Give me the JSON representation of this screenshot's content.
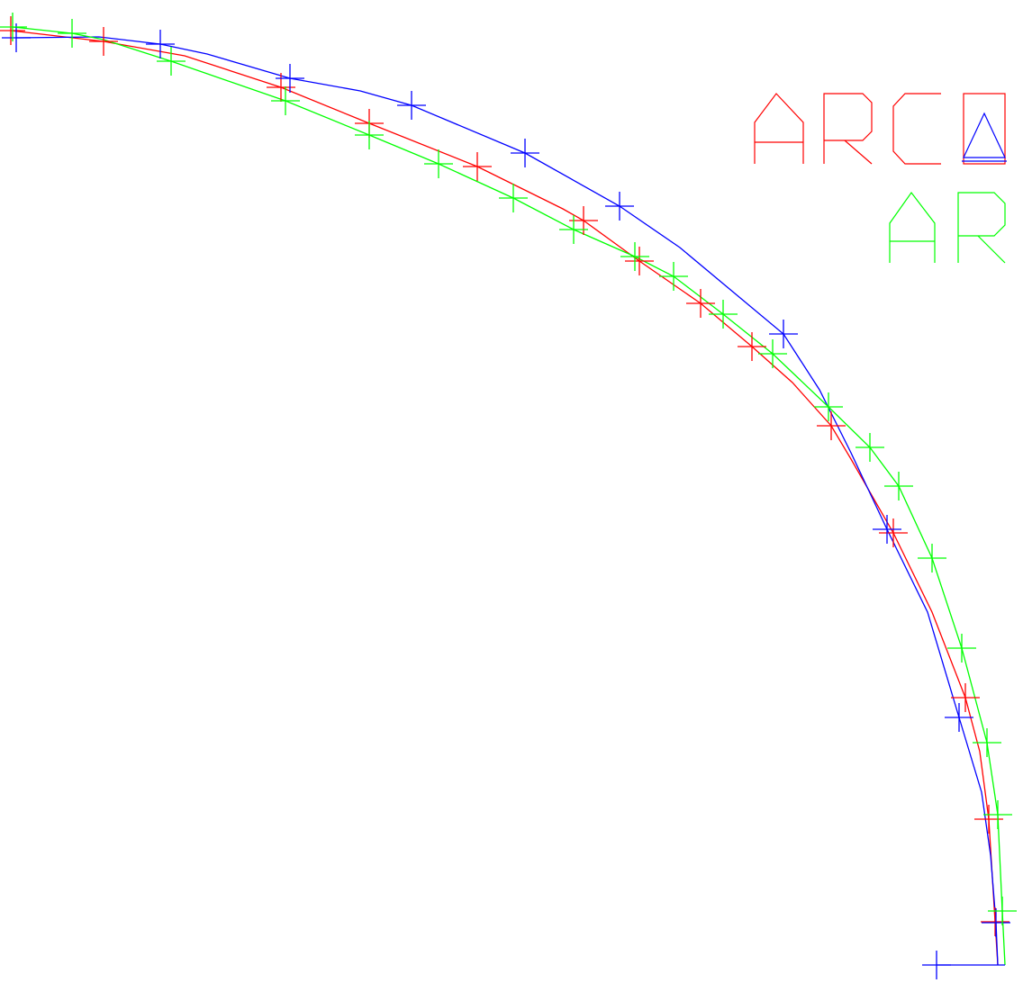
{
  "chart_data": {
    "type": "line",
    "title": "",
    "xlabel": "",
    "ylabel": "",
    "grid": false,
    "axes_visible": false,
    "labels": [
      {
        "text": "ARC",
        "color": "#ff0000"
      },
      {
        "text": "A",
        "color": "#0000ff",
        "boxed": true
      },
      {
        "text": "AR",
        "color": "#00ff00"
      }
    ],
    "series": [
      {
        "key": "red",
        "color": "#ff0000",
        "points": [
          [
            12,
            34
          ],
          [
            115,
            46
          ],
          [
            205,
            62
          ],
          [
            312,
            97
          ],
          [
            410,
            137
          ],
          [
            530,
            185
          ],
          [
            625,
            232
          ],
          [
            648,
            245
          ],
          [
            710,
            290
          ],
          [
            778,
            337
          ],
          [
            835,
            385
          ],
          [
            880,
            425
          ],
          [
            923,
            473
          ],
          [
            945,
            510
          ],
          [
            992,
            592
          ],
          [
            1035,
            680
          ],
          [
            1072,
            775
          ],
          [
            1088,
            835
          ],
          [
            1098,
            910
          ],
          [
            1105,
            1024
          ],
          [
            1108,
            1072
          ]
        ],
        "markers": [
          [
            12,
            34
          ],
          [
            115,
            46
          ],
          [
            312,
            97
          ],
          [
            410,
            137
          ],
          [
            530,
            185
          ],
          [
            648,
            245
          ],
          [
            710,
            290
          ],
          [
            778,
            337
          ],
          [
            835,
            385
          ],
          [
            923,
            473
          ],
          [
            992,
            592
          ],
          [
            1072,
            775
          ],
          [
            1098,
            910
          ],
          [
            1105,
            1024
          ]
        ]
      },
      {
        "key": "blue",
        "color": "#0000ff",
        "points": [
          [
            18,
            42
          ],
          [
            110,
            41
          ],
          [
            178,
            49
          ],
          [
            230,
            60
          ],
          [
            322,
            87
          ],
          [
            400,
            101
          ],
          [
            457,
            117
          ],
          [
            583,
            170
          ],
          [
            688,
            229
          ],
          [
            755,
            275
          ],
          [
            870,
            371
          ],
          [
            910,
            433
          ],
          [
            945,
            503
          ],
          [
            985,
            588
          ],
          [
            1030,
            680
          ],
          [
            1065,
            797
          ],
          [
            1090,
            880
          ],
          [
            1100,
            950
          ],
          [
            1106,
            1025
          ],
          [
            1108,
            1072
          ]
        ],
        "markers": [
          [
            18,
            42
          ],
          [
            178,
            49
          ],
          [
            322,
            87
          ],
          [
            457,
            117
          ],
          [
            583,
            170
          ],
          [
            688,
            229
          ],
          [
            870,
            371
          ],
          [
            985,
            588
          ],
          [
            1065,
            797
          ],
          [
            1106,
            1025
          ],
          [
            1040,
            1072
          ]
        ]
      },
      {
        "key": "green",
        "color": "#00ff00",
        "points": [
          [
            14,
            30
          ],
          [
            80,
            37
          ],
          [
            115,
            44
          ],
          [
            190,
            68
          ],
          [
            317,
            112
          ],
          [
            410,
            150
          ],
          [
            487,
            182
          ],
          [
            570,
            220
          ],
          [
            637,
            255
          ],
          [
            705,
            285
          ],
          [
            748,
            307
          ],
          [
            803,
            349
          ],
          [
            858,
            393
          ],
          [
            920,
            452
          ],
          [
            966,
            497
          ],
          [
            998,
            540
          ],
          [
            1035,
            620
          ],
          [
            1068,
            720
          ],
          [
            1096,
            825
          ],
          [
            1108,
            905
          ],
          [
            1113,
            1012
          ],
          [
            1116,
            1072
          ]
        ],
        "markers": [
          [
            14,
            30
          ],
          [
            80,
            37
          ],
          [
            190,
            68
          ],
          [
            317,
            112
          ],
          [
            410,
            150
          ],
          [
            487,
            182
          ],
          [
            570,
            220
          ],
          [
            637,
            255
          ],
          [
            705,
            285
          ],
          [
            748,
            307
          ],
          [
            803,
            349
          ],
          [
            858,
            393
          ],
          [
            920,
            452
          ],
          [
            966,
            497
          ],
          [
            998,
            540
          ],
          [
            1035,
            620
          ],
          [
            1068,
            720
          ],
          [
            1096,
            825
          ],
          [
            1108,
            905
          ],
          [
            1113,
            1012
          ]
        ]
      }
    ],
    "baseline": {
      "color": "#0000ff",
      "from": [
        1040,
        1072
      ],
      "to": [
        1116,
        1072
      ]
    }
  }
}
